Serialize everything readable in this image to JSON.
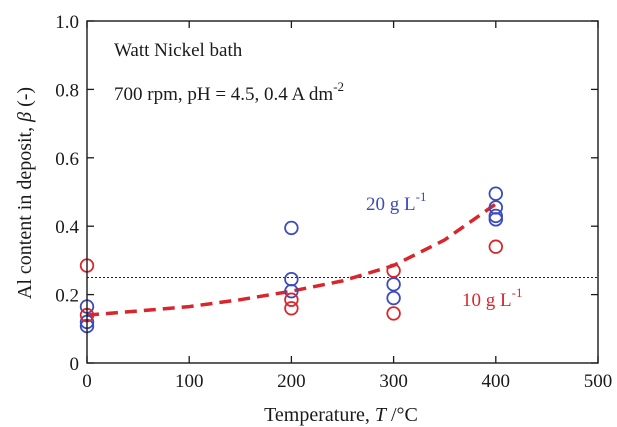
{
  "chart_data": {
    "type": "scatter",
    "xlabel": "Temperature, T /°C",
    "ylabel": "Al content in deposit, β (-)",
    "xlim": [
      0,
      500
    ],
    "ylim": [
      0,
      1.0
    ],
    "xticks": [
      "0",
      "100",
      "200",
      "300",
      "400",
      "500"
    ],
    "yticks": [
      "0",
      "0.2",
      "0.4",
      "0.6",
      "0.8",
      "1.0"
    ],
    "grid": false,
    "annotations": [
      "Watt Nickel bath",
      "700 rpm, pH = 4.5, 0.4 A dm-2"
    ],
    "series": [
      {
        "name": "20 g L-1",
        "color": "#3b4bbd",
        "marker": "open-circle",
        "points": [
          {
            "x": 0,
            "y": 0.165
          },
          {
            "x": 0,
            "y": 0.12
          },
          {
            "x": 0,
            "y": 0.108
          },
          {
            "x": 200,
            "y": 0.395
          },
          {
            "x": 200,
            "y": 0.245
          },
          {
            "x": 200,
            "y": 0.21
          },
          {
            "x": 300,
            "y": 0.23
          },
          {
            "x": 300,
            "y": 0.19
          },
          {
            "x": 400,
            "y": 0.495
          },
          {
            "x": 400,
            "y": 0.455
          },
          {
            "x": 400,
            "y": 0.43
          },
          {
            "x": 400,
            "y": 0.42
          }
        ]
      },
      {
        "name": "10 g L-1",
        "color": "#d9262c",
        "marker": "open-circle",
        "points": [
          {
            "x": 0,
            "y": 0.285
          },
          {
            "x": 0,
            "y": 0.14
          },
          {
            "x": 200,
            "y": 0.185
          },
          {
            "x": 200,
            "y": 0.16
          },
          {
            "x": 300,
            "y": 0.27
          },
          {
            "x": 300,
            "y": 0.145
          },
          {
            "x": 400,
            "y": 0.34
          }
        ]
      }
    ],
    "trend_line": {
      "style": "dashed",
      "color": "#d9262c",
      "points": [
        {
          "x": 0,
          "y": 0.14
        },
        {
          "x": 50,
          "y": 0.152
        },
        {
          "x": 100,
          "y": 0.165
        },
        {
          "x": 150,
          "y": 0.185
        },
        {
          "x": 200,
          "y": 0.21
        },
        {
          "x": 250,
          "y": 0.24
        },
        {
          "x": 300,
          "y": 0.285
        },
        {
          "x": 350,
          "y": 0.36
        },
        {
          "x": 400,
          "y": 0.465
        }
      ]
    },
    "reference_line": {
      "y": 0.25,
      "style": "dotted",
      "color": "#222222"
    }
  }
}
